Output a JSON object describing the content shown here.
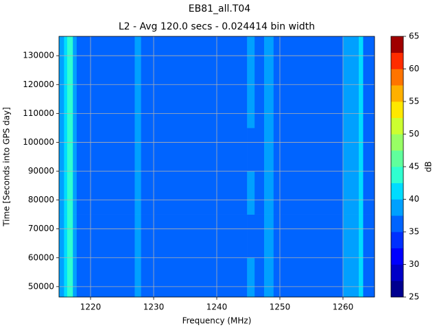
{
  "chart_data": {
    "type": "heatmap",
    "title": "EB81_all.T04",
    "subtitle": "L2 - Avg 120.0 secs - 0.024414 bin width",
    "x_label": "Frequency (MHz)",
    "y_label": "Time [Seconds into GPS day]",
    "x_edges": [
      1215,
      1215.8,
      1216.3,
      1217.2,
      1217.8,
      1227,
      1228,
      1244.8,
      1246,
      1247.5,
      1249,
      1260,
      1262.5,
      1263.2,
      1265
    ],
    "y_edges": [
      46400,
      60000,
      75000,
      90000,
      105000,
      120000,
      136700
    ],
    "z": [
      [
        38,
        40,
        42.6,
        39,
        36,
        38,
        36,
        38,
        36,
        38.5,
        36,
        37.5,
        40,
        36
      ],
      [
        38,
        40.5,
        43,
        39,
        36,
        38,
        36,
        37,
        36,
        39,
        36,
        37.5,
        40,
        36
      ],
      [
        38,
        40,
        42.8,
        39,
        36,
        38,
        36,
        38,
        36,
        39,
        36,
        38,
        40,
        36
      ],
      [
        38,
        40.5,
        43,
        39,
        36,
        38,
        36,
        37,
        36,
        39,
        36,
        37.5,
        40,
        36
      ],
      [
        38,
        40,
        42.6,
        39,
        36,
        38,
        36,
        38,
        36,
        38.5,
        36,
        38,
        40,
        36
      ],
      [
        38,
        40.5,
        43,
        39,
        36,
        38,
        36,
        38,
        36,
        39,
        36,
        37.5,
        40,
        36
      ]
    ],
    "xlim": [
      1215,
      1265
    ],
    "ylim": [
      46400,
      136700
    ],
    "xticks": [
      1220,
      1230,
      1240,
      1250,
      1260
    ],
    "yticks": [
      50000,
      60000,
      70000,
      80000,
      90000,
      100000,
      110000,
      120000,
      130000
    ],
    "grid": true,
    "colorbar": {
      "label": "dB",
      "levels": [
        25,
        27.5,
        30,
        32.5,
        35,
        37.5,
        40,
        42.5,
        45,
        47.5,
        50,
        52.5,
        55,
        57.5,
        60,
        62.5,
        65
      ],
      "colors": [
        "#00008f",
        "#0000c8",
        "#0000ff",
        "#0030ff",
        "#0064ff",
        "#00a0ff",
        "#00dcff",
        "#30ffd0",
        "#60ff9c",
        "#98ff64",
        "#ccff30",
        "#ffe800",
        "#ffb000",
        "#ff7400",
        "#ff2c00",
        "#a00000"
      ],
      "ticks": [
        25,
        30,
        35,
        40,
        45,
        50,
        55,
        60,
        65
      ]
    }
  }
}
